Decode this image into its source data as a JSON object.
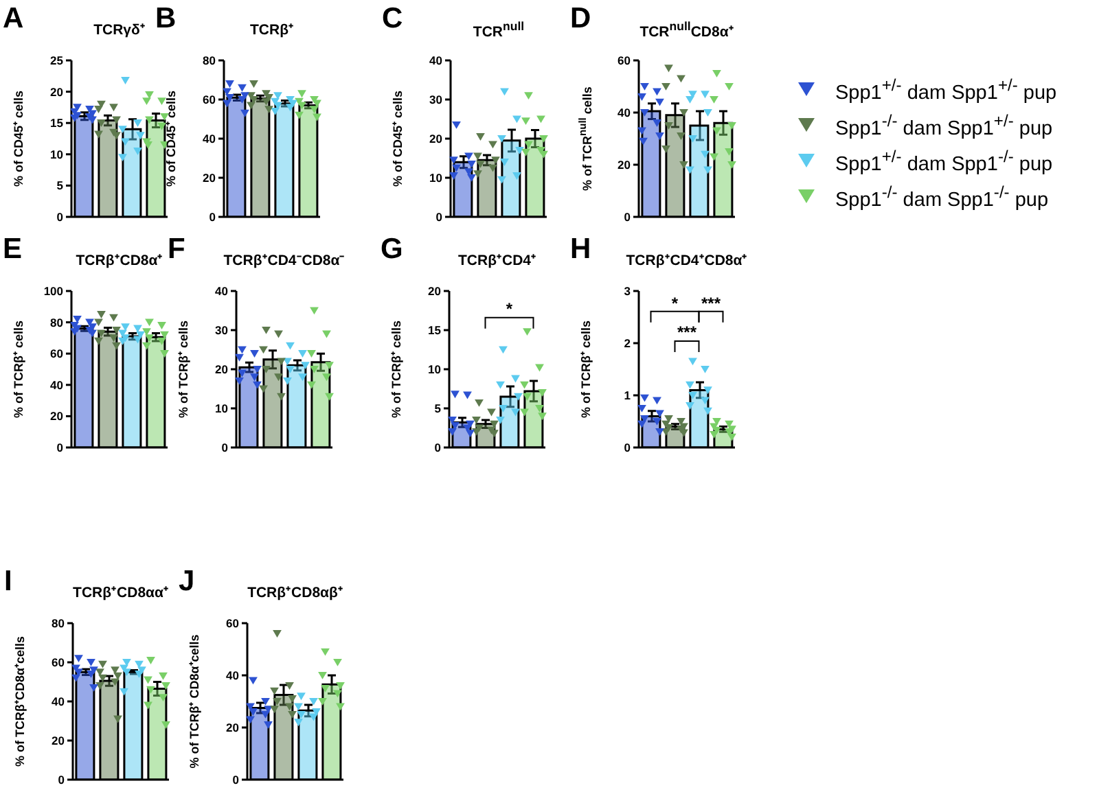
{
  "chart_data": [
    {
      "type": "bar",
      "title": "TCRγδ⁺",
      "ylabel": "% of CD45⁺ cells",
      "annotations": [
        "A"
      ],
      "stacked": true,
      "categories": [
        null,
        null,
        null,
        null
      ],
      "ylim": [
        0,
        25
      ],
      "yticks": [
        0,
        5,
        10,
        15,
        20,
        25
      ],
      "marker": "triangle",
      "series": [
        {
          "type": "bar",
          "color": "#2d52d2",
          "values": [
            16.1,
            null,
            null,
            null
          ],
          "errors": [
            0.6,
            null,
            null,
            null
          ]
        },
        {
          "type": "bar",
          "color": "#5e7a4e",
          "values": [
            null,
            15.4,
            null,
            null
          ],
          "errors": [
            null,
            0.8,
            null,
            null
          ]
        },
        {
          "type": "bar",
          "color": "#5ccbef",
          "values": [
            null,
            null,
            14.0,
            null
          ],
          "errors": [
            null,
            null,
            1.6,
            null
          ]
        },
        {
          "type": "bar",
          "color": "#79cf67",
          "values": [
            null,
            null,
            null,
            15.4
          ],
          "errors": [
            null,
            null,
            null,
            1.1
          ]
        },
        {
          "type": "scatter",
          "colors": [
            "#2d52d2",
            "#5e7a4e",
            "#5ccbef",
            "#79cf67"
          ],
          "values": [
            17.5,
            18,
            21.8,
            19.5
          ]
        },
        {
          "type": "scatter",
          "colors": [
            "#2d52d2",
            "#5e7a4e",
            "#5ccbef",
            "#79cf67"
          ],
          "values": [
            17.2,
            17.5,
            15,
            18.5
          ]
        },
        {
          "type": "scatter",
          "colors": [
            "#2d52d2",
            "#5e7a4e",
            "#5ccbef",
            "#79cf67"
          ],
          "values": [
            16.8,
            17.2,
            14,
            18.5
          ]
        },
        {
          "type": "scatter",
          "colors": [
            "#2d52d2",
            "#5e7a4e",
            "#5ccbef",
            "#79cf67"
          ],
          "values": [
            16.5,
            15.5,
            13,
            16
          ]
        },
        {
          "type": "scatter",
          "colors": [
            "#2d52d2",
            "#5e7a4e",
            "#5ccbef",
            "#79cf67"
          ],
          "values": [
            16.2,
            15,
            12,
            15.5
          ]
        },
        {
          "type": "scatter",
          "colors": [
            "#2d52d2",
            "#5e7a4e",
            "#5ccbef",
            "#79cf67"
          ],
          "values": [
            16,
            13.5,
            10.5,
            14.5
          ]
        },
        {
          "type": "scatter",
          "colors": [
            "#2d52d2",
            "#5e7a4e",
            "#5ccbef",
            "#79cf67"
          ],
          "values": [
            15.8,
            13.2,
            9.5,
            12
          ]
        },
        {
          "type": "scatter",
          "colors": [
            "#2d52d2",
            "#5e7a4e",
            "#5ccbef",
            "#79cf67"
          ],
          "values": [
            15.5,
            13,
            null,
            11.5
          ]
        },
        {
          "type": "scatter",
          "colors": [
            "#2d52d2",
            "#5e7a4e",
            "#5ccbef",
            "#79cf67"
          ],
          "values": [
            null,
            null,
            null,
            11.5
          ]
        }
      ]
    },
    {
      "type": "bar",
      "title": "TCRβ⁺",
      "ylabel": "% of CD45⁺ cells",
      "annotations": [
        "B"
      ],
      "stacked": true,
      "categories": [
        null,
        null,
        null,
        null
      ],
      "ylim": [
        0,
        80
      ],
      "yticks": [
        0,
        20,
        40,
        60,
        80
      ],
      "marker": "triangle",
      "series": [
        {
          "type": "bar",
          "color": "#2d52d2",
          "values": [
            61,
            null,
            null,
            null
          ],
          "errors": [
            1.5,
            null,
            null,
            null
          ]
        },
        {
          "type": "bar",
          "color": "#5e7a4e",
          "values": [
            null,
            60.5,
            null,
            null
          ],
          "errors": [
            null,
            1.5,
            null,
            null
          ]
        },
        {
          "type": "bar",
          "color": "#5ccbef",
          "values": [
            null,
            null,
            58,
            null
          ],
          "errors": [
            null,
            null,
            1.5,
            null
          ]
        },
        {
          "type": "bar",
          "color": "#79cf67",
          "values": [
            null,
            null,
            null,
            57
          ],
          "errors": [
            null,
            null,
            null,
            1.5
          ]
        },
        {
          "type": "scatter",
          "colors": [
            "#2d52d2",
            "#5e7a4e",
            "#5ccbef",
            "#79cf67"
          ],
          "values": [
            68,
            68,
            62,
            63
          ]
        },
        {
          "type": "scatter",
          "colors": [
            "#2d52d2",
            "#5e7a4e",
            "#5ccbef",
            "#79cf67"
          ],
          "values": [
            66,
            63,
            60,
            60
          ]
        },
        {
          "type": "scatter",
          "colors": [
            "#2d52d2",
            "#5e7a4e",
            "#5ccbef",
            "#79cf67"
          ],
          "values": [
            64,
            62,
            59,
            59
          ]
        },
        {
          "type": "scatter",
          "colors": [
            "#2d52d2",
            "#5e7a4e",
            "#5ccbef",
            "#79cf67"
          ],
          "values": [
            62,
            61,
            58,
            58
          ]
        },
        {
          "type": "scatter",
          "colors": [
            "#2d52d2",
            "#5e7a4e",
            "#5ccbef",
            "#79cf67"
          ],
          "values": [
            61,
            60,
            57,
            57
          ]
        },
        {
          "type": "scatter",
          "colors": [
            "#2d52d2",
            "#5e7a4e",
            "#5ccbef",
            "#79cf67"
          ],
          "values": [
            60,
            59,
            56,
            55
          ]
        },
        {
          "type": "scatter",
          "colors": [
            "#2d52d2",
            "#5e7a4e",
            "#5ccbef",
            "#79cf67"
          ],
          "values": [
            58,
            57,
            54,
            52
          ]
        },
        {
          "type": "scatter",
          "colors": [
            "#2d52d2",
            "#5e7a4e",
            "#5ccbef",
            "#79cf67"
          ],
          "values": [
            53,
            55,
            null,
            51
          ]
        }
      ]
    },
    {
      "type": "bar",
      "title": "TCR$^{null}$",
      "ylabel": "% of CD45⁺ cells",
      "annotations": [
        "C"
      ],
      "stacked": true,
      "categories": [
        null,
        null,
        null,
        null
      ],
      "ylim": [
        0,
        40
      ],
      "yticks": [
        0,
        10,
        20,
        30,
        40
      ],
      "marker": "triangle",
      "series": [
        {
          "type": "bar",
          "color": "#2d52d2",
          "values": [
            14,
            null,
            null,
            null
          ],
          "errors": [
            1.5,
            null,
            null,
            null
          ]
        },
        {
          "type": "bar",
          "color": "#5e7a4e",
          "values": [
            null,
            14.5,
            null,
            null
          ],
          "errors": [
            null,
            1.3,
            null,
            null
          ]
        },
        {
          "type": "bar",
          "color": "#5ccbef",
          "values": [
            null,
            null,
            19.5,
            null
          ],
          "errors": [
            null,
            null,
            2.8,
            null
          ]
        },
        {
          "type": "bar",
          "color": "#79cf67",
          "values": [
            null,
            null,
            null,
            20
          ],
          "errors": [
            null,
            null,
            null,
            2.2
          ]
        },
        {
          "type": "scatter",
          "colors": [
            "#2d52d2",
            "#5e7a4e",
            "#5ccbef",
            "#79cf67"
          ],
          "values": [
            23.5,
            20.5,
            32,
            31
          ]
        },
        {
          "type": "scatter",
          "colors": [
            "#2d52d2",
            "#5e7a4e",
            "#5ccbef",
            "#79cf67"
          ],
          "values": [
            15.5,
            18.5,
            25,
            25
          ]
        },
        {
          "type": "scatter",
          "colors": [
            "#2d52d2",
            "#5e7a4e",
            "#5ccbef",
            "#79cf67"
          ],
          "values": [
            14.5,
            15.5,
            20,
            24.5
          ]
        },
        {
          "type": "scatter",
          "colors": [
            "#2d52d2",
            "#5e7a4e",
            "#5ccbef",
            "#79cf67"
          ],
          "values": [
            13.5,
            14.5,
            17,
            20
          ]
        },
        {
          "type": "scatter",
          "colors": [
            "#2d52d2",
            "#5e7a4e",
            "#5ccbef",
            "#79cf67"
          ],
          "values": [
            12.5,
            13.5,
            14,
            18.5
          ]
        },
        {
          "type": "scatter",
          "colors": [
            "#2d52d2",
            "#5e7a4e",
            "#5ccbef",
            "#79cf67"
          ],
          "values": [
            11.5,
            12.5,
            10.5,
            17
          ]
        },
        {
          "type": "scatter",
          "colors": [
            "#2d52d2",
            "#5e7a4e",
            "#5ccbef",
            "#79cf67"
          ],
          "values": [
            10.5,
            11,
            9.5,
            16.5
          ]
        },
        {
          "type": "scatter",
          "colors": [
            "#2d52d2",
            "#5e7a4e",
            "#5ccbef",
            "#79cf67"
          ],
          "values": [
            10,
            null,
            null,
            16
          ]
        }
      ]
    },
    {
      "type": "bar",
      "title": "TCR$^{null}$CD8α⁺",
      "ylabel": "% of TCR$^{null}$ cells",
      "annotations": [
        "D"
      ],
      "stacked": true,
      "legend": "right",
      "categories": [
        null,
        null,
        null,
        null
      ],
      "ylim": [
        0,
        60
      ],
      "yticks": [
        0,
        20,
        40,
        60
      ],
      "marker": "triangle",
      "series": [
        {
          "type": "bar",
          "name": "Spp1$^{+/-}$ dam Spp1$^{+/-}$ pup",
          "color": "#2d52d2",
          "values": [
            40.5,
            null,
            null,
            null
          ],
          "errors": [
            3,
            null,
            null,
            null
          ]
        },
        {
          "type": "bar",
          "name": "Spp1$^{-/-}$ dam Spp1$^{+/-}$ pup",
          "color": "#5e7a4e",
          "values": [
            null,
            39,
            null,
            null
          ],
          "errors": [
            null,
            4.5,
            null,
            null
          ]
        },
        {
          "type": "bar",
          "name": "Spp1$^{+/-}$ dam Spp1$^{-/-}$ pup",
          "color": "#5ccbef",
          "values": [
            null,
            null,
            35,
            null
          ],
          "errors": [
            null,
            null,
            5.5,
            null
          ]
        },
        {
          "type": "bar",
          "name": "Spp1$^{-/-}$ dam Spp1$^{-/-}$ pup",
          "color": "#79cf67",
          "values": [
            null,
            null,
            null,
            36
          ],
          "errors": [
            null,
            null,
            null,
            4.5
          ]
        },
        {
          "type": "scatter",
          "colors": [
            "#2d52d2",
            "#5e7a4e",
            "#5ccbef",
            "#79cf67"
          ],
          "values": [
            50,
            57,
            47,
            55
          ]
        },
        {
          "type": "scatter",
          "colors": [
            "#2d52d2",
            "#5e7a4e",
            "#5ccbef",
            "#79cf67"
          ],
          "values": [
            48,
            53,
            47,
            50
          ]
        },
        {
          "type": "scatter",
          "colors": [
            "#2d52d2",
            "#5e7a4e",
            "#5ccbef",
            "#79cf67"
          ],
          "values": [
            46,
            50,
            45,
            45
          ]
        },
        {
          "type": "scatter",
          "colors": [
            "#2d52d2",
            "#5e7a4e",
            "#5ccbef",
            "#79cf67"
          ],
          "values": [
            44,
            40,
            40,
            35
          ]
        },
        {
          "type": "scatter",
          "colors": [
            "#2d52d2",
            "#5e7a4e",
            "#5ccbef",
            "#79cf67"
          ],
          "values": [
            40,
            35,
            30,
            33
          ]
        },
        {
          "type": "scatter",
          "colors": [
            "#2d52d2",
            "#5e7a4e",
            "#5ccbef",
            "#79cf67"
          ],
          "values": [
            36,
            31,
            24,
            25
          ]
        },
        {
          "type": "scatter",
          "colors": [
            "#2d52d2",
            "#5e7a4e",
            "#5ccbef",
            "#79cf67"
          ],
          "values": [
            33,
            26,
            18,
            23
          ]
        },
        {
          "type": "scatter",
          "colors": [
            "#2d52d2",
            "#5e7a4e",
            "#5ccbef",
            "#79cf67"
          ],
          "values": [
            31,
            20,
            18,
            20
          ]
        },
        {
          "type": "scatter",
          "colors": [
            "#2d52d2",
            "#5e7a4e",
            "#5ccbef",
            "#79cf67"
          ],
          "values": [
            29,
            null,
            null,
            null
          ]
        }
      ]
    },
    {
      "type": "bar",
      "title": "TCRβ⁺CD8α⁺",
      "ylabel": "% of TCRβ⁺ cells",
      "annotations": [
        "E"
      ],
      "stacked": true,
      "categories": [
        null,
        null,
        null,
        null
      ],
      "ylim": [
        0,
        100
      ],
      "yticks": [
        0,
        20,
        40,
        60,
        80,
        100
      ],
      "marker": "triangle",
      "series": [
        {
          "type": "bar",
          "color": "#2d52d2",
          "values": [
            76,
            null,
            null,
            null
          ],
          "errors": [
            1.5,
            null,
            null,
            null
          ]
        },
        {
          "type": "bar",
          "color": "#5e7a4e",
          "values": [
            null,
            74,
            null,
            null
          ],
          "errors": [
            null,
            2.5,
            null,
            null
          ]
        },
        {
          "type": "bar",
          "color": "#5ccbef",
          "values": [
            null,
            null,
            71,
            null
          ],
          "errors": [
            null,
            null,
            2,
            null
          ]
        },
        {
          "type": "bar",
          "color": "#79cf67",
          "values": [
            null,
            null,
            null,
            70.5
          ],
          "errors": [
            null,
            null,
            null,
            2.5
          ]
        },
        {
          "type": "scatter",
          "colors": [
            "#2d52d2",
            "#5e7a4e",
            "#5ccbef",
            "#79cf67"
          ],
          "values": [
            82,
            85,
            77,
            80
          ]
        },
        {
          "type": "scatter",
          "colors": [
            "#2d52d2",
            "#5e7a4e",
            "#5ccbef",
            "#79cf67"
          ],
          "values": [
            80,
            83,
            76,
            78
          ]
        },
        {
          "type": "scatter",
          "colors": [
            "#2d52d2",
            "#5e7a4e",
            "#5ccbef",
            "#79cf67"
          ],
          "values": [
            78,
            80,
            73,
            74
          ]
        },
        {
          "type": "scatter",
          "colors": [
            "#2d52d2",
            "#5e7a4e",
            "#5ccbef",
            "#79cf67"
          ],
          "values": [
            77,
            75,
            72,
            72
          ]
        },
        {
          "type": "scatter",
          "colors": [
            "#2d52d2",
            "#5e7a4e",
            "#5ccbef",
            "#79cf67"
          ],
          "values": [
            76,
            73,
            70,
            70
          ]
        },
        {
          "type": "scatter",
          "colors": [
            "#2d52d2",
            "#5e7a4e",
            "#5ccbef",
            "#79cf67"
          ],
          "values": [
            75,
            70,
            69,
            68
          ]
        },
        {
          "type": "scatter",
          "colors": [
            "#2d52d2",
            "#5e7a4e",
            "#5ccbef",
            "#79cf67"
          ],
          "values": [
            74,
            68,
            68,
            65
          ]
        },
        {
          "type": "scatter",
          "colors": [
            "#2d52d2",
            "#5e7a4e",
            "#5ccbef",
            "#79cf67"
          ],
          "values": [
            73,
            65,
            null,
            60
          ]
        }
      ]
    },
    {
      "type": "bar",
      "title": "TCRβ⁺CD4⁻CD8α⁻",
      "ylabel": "% of TCRβ⁺ cells",
      "annotations": [
        "F"
      ],
      "stacked": true,
      "categories": [
        null,
        null,
        null,
        null
      ],
      "ylim": [
        0,
        40
      ],
      "yticks": [
        0,
        10,
        20,
        30,
        40
      ],
      "marker": "triangle",
      "series": [
        {
          "type": "bar",
          "color": "#2d52d2",
          "values": [
            20.5,
            null,
            null,
            null
          ],
          "errors": [
            1.2,
            null,
            null,
            null
          ]
        },
        {
          "type": "bar",
          "color": "#5e7a4e",
          "values": [
            null,
            22.5,
            null,
            null
          ],
          "errors": [
            null,
            2.3,
            null,
            null
          ]
        },
        {
          "type": "bar",
          "color": "#5ccbef",
          "values": [
            null,
            null,
            21,
            null
          ],
          "errors": [
            null,
            null,
            1.3,
            null
          ]
        },
        {
          "type": "bar",
          "color": "#79cf67",
          "values": [
            null,
            null,
            null,
            21.8
          ],
          "errors": [
            null,
            null,
            null,
            2.2
          ]
        },
        {
          "type": "scatter",
          "colors": [
            "#2d52d2",
            "#5e7a4e",
            "#5ccbef",
            "#79cf67"
          ],
          "values": [
            25,
            30,
            26,
            35
          ]
        },
        {
          "type": "scatter",
          "colors": [
            "#2d52d2",
            "#5e7a4e",
            "#5ccbef",
            "#79cf67"
          ],
          "values": [
            24,
            29,
            24,
            29
          ]
        },
        {
          "type": "scatter",
          "colors": [
            "#2d52d2",
            "#5e7a4e",
            "#5ccbef",
            "#79cf67"
          ],
          "values": [
            23,
            25,
            22,
            24
          ]
        },
        {
          "type": "scatter",
          "colors": [
            "#2d52d2",
            "#5e7a4e",
            "#5ccbef",
            "#79cf67"
          ],
          "values": [
            20,
            22,
            21,
            21
          ]
        },
        {
          "type": "scatter",
          "colors": [
            "#2d52d2",
            "#5e7a4e",
            "#5ccbef",
            "#79cf67"
          ],
          "values": [
            19,
            20,
            20,
            20
          ]
        },
        {
          "type": "scatter",
          "colors": [
            "#2d52d2",
            "#5e7a4e",
            "#5ccbef",
            "#79cf67"
          ],
          "values": [
            18,
            18,
            18,
            18
          ]
        },
        {
          "type": "scatter",
          "colors": [
            "#2d52d2",
            "#5e7a4e",
            "#5ccbef",
            "#79cf67"
          ],
          "values": [
            17,
            15,
            17,
            16
          ]
        },
        {
          "type": "scatter",
          "colors": [
            "#2d52d2",
            "#5e7a4e",
            "#5ccbef",
            "#79cf67"
          ],
          "values": [
            16,
            13,
            null,
            13
          ]
        }
      ]
    },
    {
      "type": "bar",
      "title": "TCRβ⁺CD4⁺",
      "ylabel": "% of TCRβ⁺ cells",
      "annotations": [
        "G",
        "*"
      ],
      "stacked": true,
      "categories": [
        null,
        null,
        null,
        null
      ],
      "ylim": [
        0,
        20
      ],
      "yticks": [
        0,
        5,
        10,
        15,
        20
      ],
      "marker": "triangle",
      "series": [
        {
          "type": "bar",
          "color": "#2d52d2",
          "values": [
            3.2,
            null,
            null,
            null
          ],
          "errors": [
            0.6,
            null,
            null,
            null
          ]
        },
        {
          "type": "bar",
          "color": "#5e7a4e",
          "values": [
            null,
            3.0,
            null,
            null
          ],
          "errors": [
            null,
            0.5,
            null,
            null
          ]
        },
        {
          "type": "bar",
          "color": "#5ccbef",
          "values": [
            null,
            null,
            6.5,
            null
          ],
          "errors": [
            null,
            null,
            1.3,
            null
          ]
        },
        {
          "type": "bar",
          "color": "#79cf67",
          "values": [
            null,
            null,
            null,
            7.2
          ],
          "errors": [
            null,
            null,
            null,
            1.3
          ]
        },
        {
          "type": "scatter",
          "colors": [
            "#2d52d2",
            "#5e7a4e",
            "#5ccbef",
            "#79cf67"
          ],
          "values": [
            6.8,
            5.7,
            12.5,
            14.8
          ]
        },
        {
          "type": "scatter",
          "colors": [
            "#2d52d2",
            "#5e7a4e",
            "#5ccbef",
            "#79cf67"
          ],
          "values": [
            6.7,
            4.5,
            8.8,
            10.2
          ]
        },
        {
          "type": "scatter",
          "colors": [
            "#2d52d2",
            "#5e7a4e",
            "#5ccbef",
            "#79cf67"
          ],
          "values": [
            3.5,
            3.5,
            8,
            8
          ]
        },
        {
          "type": "scatter",
          "colors": [
            "#2d52d2",
            "#5e7a4e",
            "#5ccbef",
            "#79cf67"
          ],
          "values": [
            3,
            3,
            6.5,
            7
          ]
        },
        {
          "type": "scatter",
          "colors": [
            "#2d52d2",
            "#5e7a4e",
            "#5ccbef",
            "#79cf67"
          ],
          "values": [
            2.8,
            2.5,
            5,
            6.5
          ]
        },
        {
          "type": "scatter",
          "colors": [
            "#2d52d2",
            "#5e7a4e",
            "#5ccbef",
            "#79cf67"
          ],
          "values": [
            2.5,
            2.2,
            4.5,
            5
          ]
        },
        {
          "type": "scatter",
          "colors": [
            "#2d52d2",
            "#5e7a4e",
            "#5ccbef",
            "#79cf67"
          ],
          "values": [
            2,
            2,
            3.5,
            4.5
          ]
        },
        {
          "type": "scatter",
          "colors": [
            "#2d52d2",
            "#5e7a4e",
            "#5ccbef",
            "#79cf67"
          ],
          "values": [
            1.8,
            1.8,
            null,
            4
          ]
        }
      ]
    },
    {
      "type": "bar",
      "title": "TCRβ⁺CD4⁺CD8α⁺",
      "ylabel": "% of TCRβ⁺ cells",
      "annotations": [
        "H",
        "*",
        "***",
        "***"
      ],
      "stacked": true,
      "categories": [
        null,
        null,
        null,
        null
      ],
      "ylim": [
        0,
        3
      ],
      "yticks": [
        0,
        1,
        2,
        3
      ],
      "marker": "triangle",
      "series": [
        {
          "type": "bar",
          "color": "#2d52d2",
          "values": [
            0.6,
            null,
            null,
            null
          ],
          "errors": [
            0.1,
            null,
            null,
            null
          ]
        },
        {
          "type": "bar",
          "color": "#5e7a4e",
          "values": [
            null,
            0.4,
            null,
            null
          ],
          "errors": [
            null,
            0.05,
            null,
            null
          ]
        },
        {
          "type": "bar",
          "color": "#5ccbef",
          "values": [
            null,
            null,
            1.1,
            null
          ],
          "errors": [
            null,
            null,
            0.15,
            null
          ]
        },
        {
          "type": "bar",
          "color": "#79cf67",
          "values": [
            null,
            null,
            null,
            0.35
          ],
          "errors": [
            null,
            null,
            null,
            0.05
          ]
        },
        {
          "type": "scatter",
          "colors": [
            "#2d52d2",
            "#5e7a4e",
            "#5ccbef",
            "#79cf67"
          ],
          "values": [
            0.95,
            0.55,
            1.65,
            0.5
          ]
        },
        {
          "type": "scatter",
          "colors": [
            "#2d52d2",
            "#5e7a4e",
            "#5ccbef",
            "#79cf67"
          ],
          "values": [
            0.9,
            0.5,
            1.5,
            0.45
          ]
        },
        {
          "type": "scatter",
          "colors": [
            "#2d52d2",
            "#5e7a4e",
            "#5ccbef",
            "#79cf67"
          ],
          "values": [
            0.75,
            0.45,
            1.2,
            0.4
          ]
        },
        {
          "type": "scatter",
          "colors": [
            "#2d52d2",
            "#5e7a4e",
            "#5ccbef",
            "#79cf67"
          ],
          "values": [
            0.65,
            0.4,
            1.1,
            0.35
          ]
        },
        {
          "type": "scatter",
          "colors": [
            "#2d52d2",
            "#5e7a4e",
            "#5ccbef",
            "#79cf67"
          ],
          "values": [
            0.55,
            0.38,
            1,
            0.33
          ]
        },
        {
          "type": "scatter",
          "colors": [
            "#2d52d2",
            "#5e7a4e",
            "#5ccbef",
            "#79cf67"
          ],
          "values": [
            0.5,
            0.35,
            0.9,
            0.3
          ]
        },
        {
          "type": "scatter",
          "colors": [
            "#2d52d2",
            "#5e7a4e",
            "#5ccbef",
            "#79cf67"
          ],
          "values": [
            0.45,
            0.3,
            0.8,
            0.25
          ]
        },
        {
          "type": "scatter",
          "colors": [
            "#2d52d2",
            "#5e7a4e",
            "#5ccbef",
            "#79cf67"
          ],
          "values": [
            0.3,
            0.28,
            0.7,
            0.2
          ]
        }
      ]
    },
    {
      "type": "bar",
      "title": "TCRβ⁺CD8αα⁺",
      "ylabel": "% of TCRβ⁺CD8α⁺cells",
      "annotations": [
        "I"
      ],
      "stacked": true,
      "categories": [
        null,
        null,
        null,
        null
      ],
      "ylim": [
        0,
        80
      ],
      "yticks": [
        0,
        20,
        40,
        60,
        80
      ],
      "marker": "triangle",
      "series": [
        {
          "type": "bar",
          "color": "#2d52d2",
          "values": [
            55,
            null,
            null,
            null
          ],
          "errors": [
            1.5,
            null,
            null,
            null
          ]
        },
        {
          "type": "bar",
          "color": "#5e7a4e",
          "values": [
            null,
            50.5,
            null,
            null
          ],
          "errors": [
            null,
            2.5,
            null,
            null
          ]
        },
        {
          "type": "bar",
          "color": "#5ccbef",
          "values": [
            null,
            null,
            55,
            null
          ],
          "errors": [
            null,
            null,
            1,
            null
          ]
        },
        {
          "type": "bar",
          "color": "#79cf67",
          "values": [
            null,
            null,
            null,
            46.5
          ],
          "errors": [
            null,
            null,
            null,
            3.5
          ]
        },
        {
          "type": "scatter",
          "colors": [
            "#2d52d2",
            "#5e7a4e",
            "#5ccbef",
            "#79cf67"
          ],
          "values": [
            62,
            59,
            60,
            61
          ]
        },
        {
          "type": "scatter",
          "colors": [
            "#2d52d2",
            "#5e7a4e",
            "#5ccbef",
            "#79cf67"
          ],
          "values": [
            60,
            56,
            59,
            53
          ]
        },
        {
          "type": "scatter",
          "colors": [
            "#2d52d2",
            "#5e7a4e",
            "#5ccbef",
            "#79cf67"
          ],
          "values": [
            57,
            55,
            57,
            51
          ]
        },
        {
          "type": "scatter",
          "colors": [
            "#2d52d2",
            "#5e7a4e",
            "#5ccbef",
            "#79cf67"
          ],
          "values": [
            56,
            53,
            56,
            48
          ]
        },
        {
          "type": "scatter",
          "colors": [
            "#2d52d2",
            "#5e7a4e",
            "#5ccbef",
            "#79cf67"
          ],
          "values": [
            55,
            52,
            55,
            46
          ]
        },
        {
          "type": "scatter",
          "colors": [
            "#2d52d2",
            "#5e7a4e",
            "#5ccbef",
            "#79cf67"
          ],
          "values": [
            54,
            50,
            54,
            42
          ]
        },
        {
          "type": "scatter",
          "colors": [
            "#2d52d2",
            "#5e7a4e",
            "#5ccbef",
            "#79cf67"
          ],
          "values": [
            52,
            48,
            45,
            38
          ]
        },
        {
          "type": "scatter",
          "colors": [
            "#2d52d2",
            "#5e7a4e",
            "#5ccbef",
            "#79cf67"
          ],
          "values": [
            47,
            31,
            null,
            28
          ]
        }
      ]
    },
    {
      "type": "bar",
      "title": "TCRβ⁺CD8αβ⁺",
      "ylabel": "% of TCRβ⁺ CD8α⁺cells",
      "annotations": [
        "J"
      ],
      "stacked": true,
      "categories": [
        null,
        null,
        null,
        null
      ],
      "ylim": [
        0,
        60
      ],
      "yticks": [
        0,
        20,
        40,
        60
      ],
      "marker": "triangle",
      "series": [
        {
          "type": "bar",
          "color": "#2d52d2",
          "values": [
            27.5,
            null,
            null,
            null
          ],
          "errors": [
            2,
            null,
            null,
            null
          ]
        },
        {
          "type": "bar",
          "color": "#5e7a4e",
          "values": [
            null,
            32.5,
            null,
            null
          ],
          "errors": [
            null,
            3.8,
            null,
            null
          ]
        },
        {
          "type": "bar",
          "color": "#5ccbef",
          "values": [
            null,
            null,
            26.5,
            null
          ],
          "errors": [
            null,
            null,
            2.2,
            null
          ]
        },
        {
          "type": "bar",
          "color": "#79cf67",
          "values": [
            null,
            null,
            null,
            36.5
          ],
          "errors": [
            null,
            null,
            null,
            3.5
          ]
        },
        {
          "type": "scatter",
          "colors": [
            "#2d52d2",
            "#5e7a4e",
            "#5ccbef",
            "#79cf67"
          ],
          "values": [
            38,
            56,
            32,
            49
          ]
        },
        {
          "type": "scatter",
          "colors": [
            "#2d52d2",
            "#5e7a4e",
            "#5ccbef",
            "#79cf67"
          ],
          "values": [
            30,
            36,
            30,
            45
          ]
        },
        {
          "type": "scatter",
          "colors": [
            "#2d52d2",
            "#5e7a4e",
            "#5ccbef",
            "#79cf67"
          ],
          "values": [
            28,
            34,
            28,
            40
          ]
        },
        {
          "type": "scatter",
          "colors": [
            "#2d52d2",
            "#5e7a4e",
            "#5ccbef",
            "#79cf67"
          ],
          "values": [
            27,
            31,
            26,
            36
          ]
        },
        {
          "type": "scatter",
          "colors": [
            "#2d52d2",
            "#5e7a4e",
            "#5ccbef",
            "#79cf67"
          ],
          "values": [
            26,
            30,
            25,
            35
          ]
        },
        {
          "type": "scatter",
          "colors": [
            "#2d52d2",
            "#5e7a4e",
            "#5ccbef",
            "#79cf67"
          ],
          "values": [
            25,
            28,
            24,
            33
          ]
        },
        {
          "type": "scatter",
          "colors": [
            "#2d52d2",
            "#5e7a4e",
            "#5ccbef",
            "#79cf67"
          ],
          "values": [
            23,
            27,
            22,
            30
          ]
        },
        {
          "type": "scatter",
          "colors": [
            "#2d52d2",
            "#5e7a4e",
            "#5ccbef",
            "#79cf67"
          ],
          "values": [
            21,
            25,
            null,
            28
          ]
        }
      ]
    }
  ]
}
